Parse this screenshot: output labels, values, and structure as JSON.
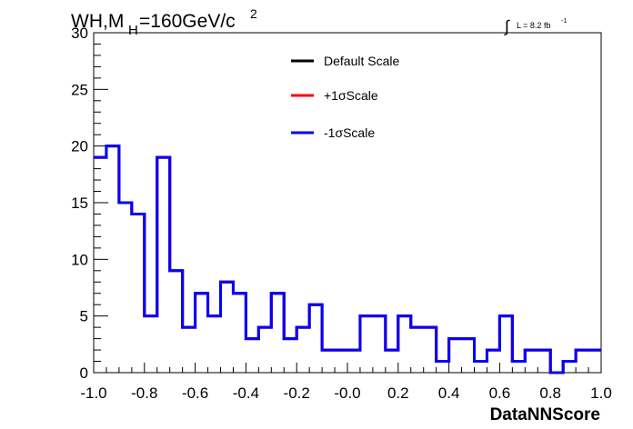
{
  "title": {
    "main": "WH,M",
    "subscript": "H",
    "rest": "=160GeV/c",
    "superscript": "2"
  },
  "lumi": {
    "integral": "∫",
    "text": "L = 8.2 fb",
    "superscript": "-1"
  },
  "chart_data": {
    "type": "histogram",
    "xlabel": "DataNNScore",
    "ylabel": "",
    "xlim": [
      -1.0,
      1.0
    ],
    "ylim": [
      0,
      30
    ],
    "x_ticks": [
      "-1.0",
      "-0.8",
      "-0.6",
      "-0.4",
      "-0.2",
      "-0.0",
      "0.2",
      "0.4",
      "0.6",
      "0.8",
      "1.0"
    ],
    "y_ticks": [
      "0",
      "5",
      "10",
      "15",
      "20",
      "25",
      "30"
    ],
    "bin_edges_start": -1.0,
    "bin_width": 0.05,
    "legend_placement": "top-center",
    "series": [
      {
        "name": "Default Scale",
        "color": "#000000",
        "values": [
          19,
          20,
          15,
          14,
          5,
          19,
          9,
          4,
          7,
          5,
          8,
          7,
          3,
          4,
          7,
          3,
          4,
          6,
          2,
          2,
          2,
          5,
          5,
          2,
          5,
          4,
          4,
          1,
          3,
          3,
          1,
          2,
          5,
          1,
          2,
          2,
          0,
          1,
          2,
          2
        ]
      },
      {
        "name": "+1σScale",
        "color": "#ff0000",
        "values": [
          19,
          20,
          15,
          14,
          5,
          19,
          9,
          4,
          7,
          5,
          8,
          7,
          3,
          4,
          7,
          3,
          4,
          6,
          2,
          2,
          2,
          5,
          5,
          2,
          5,
          4,
          4,
          1,
          3,
          3,
          1,
          2,
          5,
          1,
          2,
          2,
          0,
          1,
          2,
          2
        ]
      },
      {
        "name": "-1σScale",
        "color": "#0000ff",
        "values": [
          19,
          20,
          15,
          14,
          5,
          19,
          9,
          4,
          7,
          5,
          8,
          7,
          3,
          4,
          7,
          3,
          4,
          6,
          2,
          2,
          2,
          5,
          5,
          2,
          5,
          4,
          4,
          1,
          3,
          3,
          1,
          2,
          5,
          1,
          2,
          2,
          0,
          1,
          2,
          2
        ]
      }
    ]
  }
}
